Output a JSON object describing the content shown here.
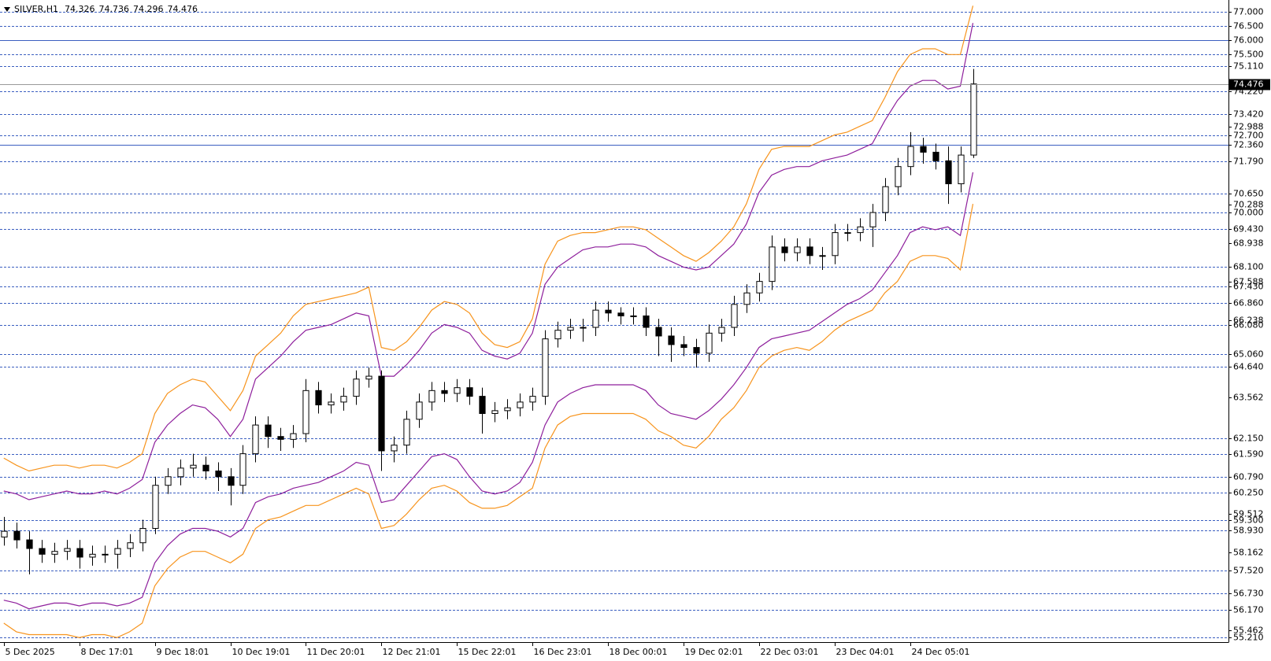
{
  "chart_data": {
    "type": "candlestick",
    "symbol": "SILVER,H1",
    "ohlc": [
      74.326,
      74.736,
      74.296,
      74.476
    ],
    "xlim": [
      -0.3,
      97.3
    ],
    "xticks": [
      {
        "value": 0,
        "label": "5 Dec 2025"
      },
      {
        "value": 6,
        "label": "8 Dec 17:01"
      },
      {
        "value": 12,
        "label": "9 Dec 18:01"
      },
      {
        "value": 18,
        "label": "10 Dec 19:01"
      },
      {
        "value": 24,
        "label": "11 Dec 20:01"
      },
      {
        "value": 30,
        "label": "12 Dec 21:01"
      },
      {
        "value": 36,
        "label": "15 Dec 22:01"
      },
      {
        "value": 42,
        "label": "16 Dec 23:01"
      },
      {
        "value": 48,
        "label": "18 Dec 00:01"
      },
      {
        "value": 54,
        "label": "19 Dec 02:01"
      },
      {
        "value": 60,
        "label": "22 Dec 03:01"
      },
      {
        "value": 66,
        "label": "23 Dec 04:01"
      },
      {
        "value": 72,
        "label": "24 Dec 05:01"
      }
    ],
    "ylim": [
      55.04,
      77.4
    ],
    "yticks": [
      72.988,
      70.288,
      68.938,
      67.588,
      66.238,
      63.562,
      59.512,
      58.162,
      55.462
    ],
    "levels": [
      {
        "value": 77,
        "label": "77.000",
        "style": "dashed"
      },
      {
        "value": 76.5,
        "label": "76.500",
        "style": "dashed"
      },
      {
        "value": 76,
        "label": "76.000",
        "style": "solid"
      },
      {
        "value": 75.5,
        "label": "75.500",
        "style": "dashed"
      },
      {
        "value": 75.11,
        "label": "75.110",
        "style": "dashed"
      },
      {
        "value": 74.22,
        "label": "74.220",
        "style": "dashed"
      },
      {
        "value": 73.42,
        "label": "73.420",
        "style": "dashed"
      },
      {
        "value": 72.7,
        "label": "72.700",
        "style": "dashed"
      },
      {
        "value": 72.36,
        "label": "72.360",
        "style": "solid"
      },
      {
        "value": 71.79,
        "label": "71.790",
        "style": "dashed"
      },
      {
        "value": 70.65,
        "label": "70.650",
        "style": "dashed"
      },
      {
        "value": 70,
        "label": "70.000",
        "style": "dashed"
      },
      {
        "value": 69.43,
        "label": "69.430",
        "style": "dashed"
      },
      {
        "value": 68.1,
        "label": "68.100",
        "style": "dashed"
      },
      {
        "value": 67.43,
        "label": "67.430",
        "style": "dashed"
      },
      {
        "value": 66.86,
        "label": "66.860",
        "style": "dashed"
      },
      {
        "value": 66.08,
        "label": "66.080",
        "style": "dashed"
      },
      {
        "value": 65.06,
        "label": "65.060",
        "style": "dashed"
      },
      {
        "value": 64.64,
        "label": "64.640",
        "style": "dashed"
      },
      {
        "value": 62.15,
        "label": "62.150",
        "style": "dashed"
      },
      {
        "value": 61.59,
        "label": "61.590",
        "style": "dashed"
      },
      {
        "value": 60.79,
        "label": "60.790",
        "style": "dashed"
      },
      {
        "value": 60.25,
        "label": "60.250",
        "style": "dashed"
      },
      {
        "value": 59.3,
        "label": "59.300",
        "style": "dashed"
      },
      {
        "value": 58.93,
        "label": "58.930",
        "style": "dashed"
      },
      {
        "value": 57.52,
        "label": "57.520",
        "style": "dashed"
      },
      {
        "value": 56.73,
        "label": "56.730",
        "style": "dashed"
      },
      {
        "value": 56.17,
        "label": "56.170",
        "style": "dashed"
      },
      {
        "value": 55.21,
        "label": "55.210",
        "style": "dashed"
      }
    ],
    "level_color": "#3b5fc0",
    "last_price": 74.476,
    "last_price_color": "#999999",
    "bull_color": "#ffffff",
    "bear_color": "#000000",
    "wick_color": "#000000",
    "open": [
      58.7,
      58.9,
      58.6,
      58.3,
      58.1,
      58.2,
      58.3,
      58.0,
      58.1,
      58.1,
      58.3,
      58.5,
      59.0,
      60.5,
      60.8,
      61.1,
      61.2,
      61.0,
      60.8,
      60.5,
      61.6,
      62.6,
      62.2,
      62.1,
      62.3,
      63.8,
      63.3,
      63.4,
      63.6,
      64.2,
      64.3,
      61.7,
      61.9,
      62.8,
      63.4,
      63.8,
      63.7,
      63.9,
      63.6,
      63.0,
      63.1,
      63.2,
      63.4,
      63.6,
      65.6,
      65.9,
      66.0,
      66.0,
      66.6,
      66.5,
      66.4,
      66.4,
      66.0,
      65.7,
      65.4,
      65.3,
      65.1,
      65.8,
      66.0,
      66.8,
      67.2,
      67.6,
      68.8,
      68.6,
      68.8,
      68.5,
      68.5,
      69.3,
      69.3,
      69.5,
      70.0,
      70.9,
      71.6,
      72.3,
      72.1,
      71.8,
      71.0,
      72.0
    ],
    "high": [
      59.4,
      59.2,
      58.9,
      58.6,
      58.5,
      58.6,
      58.6,
      58.4,
      58.4,
      58.6,
      58.8,
      59.3,
      60.8,
      61.1,
      61.4,
      61.6,
      61.5,
      61.3,
      61.1,
      61.9,
      62.9,
      62.9,
      62.5,
      62.6,
      64.2,
      64.1,
      63.7,
      63.9,
      64.5,
      64.6,
      64.5,
      62.2,
      63.1,
      63.7,
      64.1,
      64.1,
      64.2,
      64.2,
      63.9,
      63.4,
      63.5,
      63.7,
      63.9,
      65.9,
      66.2,
      66.3,
      66.3,
      66.9,
      66.9,
      66.7,
      66.7,
      66.7,
      66.3,
      66.0,
      65.7,
      65.6,
      66.1,
      66.3,
      67.1,
      67.5,
      67.9,
      69.2,
      69.1,
      69.1,
      69.1,
      68.8,
      69.6,
      69.6,
      69.8,
      70.3,
      71.2,
      71.9,
      72.8,
      72.6,
      72.4,
      72.3,
      72.3,
      75.0
    ],
    "low": [
      58.4,
      58.3,
      57.4,
      57.8,
      57.8,
      57.9,
      57.6,
      57.7,
      57.8,
      57.6,
      58.0,
      58.2,
      58.8,
      60.2,
      60.5,
      60.8,
      60.7,
      60.3,
      59.8,
      60.2,
      61.3,
      61.8,
      61.7,
      61.8,
      62.0,
      63.0,
      63.0,
      63.1,
      63.3,
      63.9,
      61.0,
      61.3,
      61.6,
      62.5,
      63.1,
      63.4,
      63.4,
      63.3,
      62.3,
      62.7,
      62.8,
      62.9,
      63.1,
      63.3,
      65.3,
      65.6,
      65.5,
      65.7,
      66.2,
      66.1,
      66.1,
      65.7,
      65.0,
      64.8,
      65.0,
      64.6,
      64.8,
      65.5,
      65.7,
      66.5,
      66.9,
      67.3,
      68.3,
      68.3,
      68.2,
      68.0,
      68.2,
      69.0,
      69.0,
      68.8,
      69.7,
      70.6,
      71.3,
      71.7,
      71.5,
      70.3,
      70.7,
      71.9
    ],
    "close": [
      58.9,
      58.6,
      58.3,
      58.1,
      58.2,
      58.3,
      58.0,
      58.1,
      58.1,
      58.3,
      58.5,
      59.0,
      60.5,
      60.8,
      61.1,
      61.2,
      61.0,
      60.8,
      60.5,
      61.6,
      62.6,
      62.2,
      62.1,
      62.3,
      63.8,
      63.3,
      63.4,
      63.6,
      64.2,
      64.3,
      61.7,
      61.9,
      62.8,
      63.4,
      63.8,
      63.7,
      63.9,
      63.6,
      63.0,
      63.1,
      63.2,
      63.4,
      63.6,
      65.6,
      65.9,
      66.0,
      66.0,
      66.6,
      66.5,
      66.4,
      66.4,
      66.0,
      65.7,
      65.4,
      65.3,
      65.1,
      65.8,
      66.0,
      66.8,
      67.2,
      67.6,
      68.8,
      68.6,
      68.8,
      68.5,
      68.5,
      69.3,
      69.3,
      69.5,
      70.0,
      70.9,
      71.6,
      72.3,
      72.1,
      71.8,
      71.0,
      72.0,
      74.476
    ],
    "bands": [
      {
        "color": "#f7941d",
        "values": [
          61.45,
          61.2,
          61.0,
          61.1,
          61.2,
          61.2,
          61.1,
          61.2,
          61.2,
          61.1,
          61.3,
          61.6,
          63.0,
          63.7,
          64.0,
          64.2,
          64.1,
          63.6,
          63.1,
          63.8,
          65.0,
          65.4,
          65.8,
          66.4,
          66.8,
          66.9,
          67.0,
          67.1,
          67.2,
          67.4,
          65.3,
          65.2,
          65.5,
          66.0,
          66.6,
          66.9,
          66.8,
          66.5,
          65.8,
          65.4,
          65.3,
          65.5,
          66.3,
          68.2,
          69.0,
          69.2,
          69.3,
          69.3,
          69.4,
          69.5,
          69.5,
          69.4,
          69.1,
          68.8,
          68.5,
          68.3,
          68.6,
          69.0,
          69.5,
          70.3,
          71.5,
          72.2,
          72.3,
          72.3,
          72.3,
          72.5,
          72.7,
          72.8,
          73.0,
          73.2,
          74.0,
          74.9,
          75.5,
          75.7,
          75.7,
          75.5,
          75.5,
          77.2
        ]
      },
      {
        "color": "#8e1f9c",
        "values": [
          60.3,
          60.2,
          60.0,
          60.1,
          60.2,
          60.3,
          60.2,
          60.2,
          60.3,
          60.2,
          60.4,
          60.7,
          62.0,
          62.6,
          63.0,
          63.3,
          63.2,
          62.8,
          62.2,
          62.8,
          64.2,
          64.6,
          65.0,
          65.5,
          65.9,
          66.0,
          66.1,
          66.3,
          66.5,
          66.4,
          64.3,
          64.3,
          64.7,
          65.2,
          65.8,
          66.1,
          66.0,
          65.8,
          65.2,
          65.0,
          64.9,
          65.1,
          65.8,
          67.5,
          68.1,
          68.4,
          68.7,
          68.8,
          68.8,
          68.9,
          68.9,
          68.8,
          68.5,
          68.3,
          68.1,
          68.0,
          68.1,
          68.5,
          68.9,
          69.6,
          70.7,
          71.3,
          71.5,
          71.6,
          71.6,
          71.8,
          71.9,
          72.0,
          72.2,
          72.4,
          73.2,
          73.9,
          74.4,
          74.6,
          74.6,
          74.3,
          74.4,
          76.6
        ]
      },
      {
        "color": "#8e1f9c",
        "values": [
          56.5,
          56.4,
          56.2,
          56.3,
          56.4,
          56.4,
          56.3,
          56.4,
          56.4,
          56.3,
          56.4,
          56.6,
          57.8,
          58.4,
          58.8,
          59.0,
          59.0,
          58.9,
          58.7,
          59.0,
          59.9,
          60.1,
          60.2,
          60.4,
          60.5,
          60.6,
          60.8,
          61.0,
          61.3,
          61.2,
          59.9,
          60.0,
          60.5,
          61.0,
          61.5,
          61.6,
          61.4,
          60.8,
          60.3,
          60.2,
          60.3,
          60.6,
          61.3,
          62.6,
          63.4,
          63.7,
          63.9,
          64.0,
          64.0,
          64.0,
          64.0,
          63.8,
          63.3,
          63.0,
          62.9,
          62.8,
          63.1,
          63.5,
          64.0,
          64.6,
          65.3,
          65.6,
          65.7,
          65.8,
          65.9,
          66.2,
          66.5,
          66.8,
          67.0,
          67.3,
          67.9,
          68.5,
          69.3,
          69.5,
          69.4,
          69.5,
          69.2,
          71.4
        ]
      },
      {
        "color": "#f7941d",
        "values": [
          55.7,
          55.4,
          55.3,
          55.3,
          55.3,
          55.3,
          55.2,
          55.3,
          55.3,
          55.2,
          55.4,
          55.7,
          57.0,
          57.6,
          58.0,
          58.2,
          58.2,
          58.0,
          57.8,
          58.1,
          59.0,
          59.3,
          59.4,
          59.6,
          59.8,
          59.8,
          60.0,
          60.2,
          60.4,
          60.2,
          59.0,
          59.1,
          59.5,
          60.0,
          60.4,
          60.5,
          60.3,
          59.9,
          59.7,
          59.7,
          59.8,
          60.1,
          60.4,
          61.8,
          62.6,
          62.9,
          63.0,
          63.0,
          63.0,
          63.0,
          63.0,
          62.8,
          62.4,
          62.2,
          61.9,
          61.8,
          62.2,
          62.8,
          63.2,
          63.8,
          64.6,
          65.0,
          65.2,
          65.3,
          65.2,
          65.5,
          65.9,
          66.2,
          66.4,
          66.6,
          67.2,
          67.6,
          68.3,
          68.5,
          68.5,
          68.4,
          68.0,
          70.3
        ]
      }
    ]
  }
}
